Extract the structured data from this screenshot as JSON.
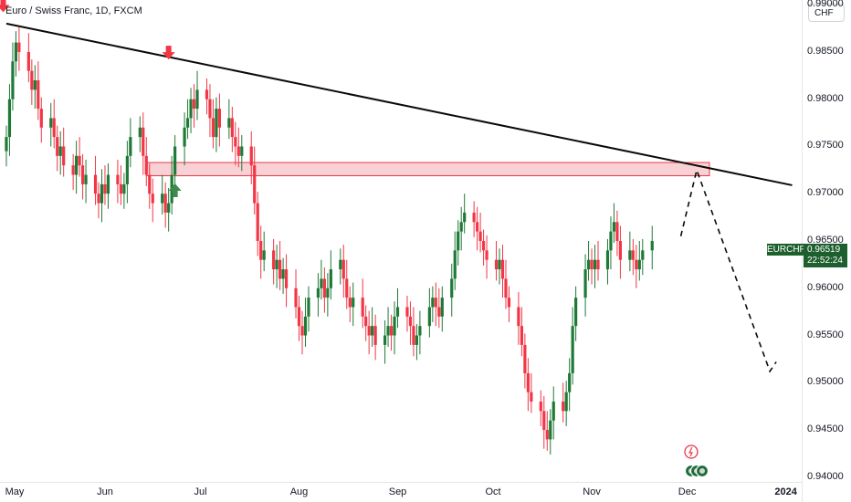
{
  "header": {
    "title": "Euro / Swiss Franc, 1D, FXCM"
  },
  "currency_button": "CHF",
  "price_label": {
    "symbol": "EURCHF",
    "price": "0.96519",
    "countdown": "22:52:24"
  },
  "colors": {
    "up": "#1f7a37",
    "down": "#f23645",
    "trend": "#0a0a0a",
    "zone_fill": "#f8c9cd",
    "zone_stroke": "#e5384a",
    "arrow_down": "#f23645",
    "arrow_up": "#3d8a4a"
  },
  "icons": [
    "flash-icon",
    "events-icon"
  ],
  "chart_data": {
    "type": "candlestick",
    "title": "Euro / Swiss Franc, 1D, FXCM",
    "ylim": [
      0.9395,
      0.9905
    ],
    "y_ticks": [
      "0.99000",
      "0.98500",
      "0.98000",
      "0.97500",
      "0.97000",
      "0.96500",
      "0.96000",
      "0.95500",
      "0.95000",
      "0.94500",
      "0.94000"
    ],
    "y_tick_values": [
      0.99,
      0.985,
      0.98,
      0.975,
      0.97,
      0.965,
      0.96,
      0.955,
      0.95,
      0.945,
      0.94
    ],
    "x_ticks": [
      {
        "label": "May",
        "date": "2023-05-01"
      },
      {
        "label": "Jun",
        "date": "2023-06-01"
      },
      {
        "label": "Jul",
        "date": "2023-07-01"
      },
      {
        "label": "Aug",
        "date": "2023-08-01"
      },
      {
        "label": "Sep",
        "date": "2023-09-01"
      },
      {
        "label": "Oct",
        "date": "2023-10-01"
      },
      {
        "label": "Nov",
        "date": "2023-11-01"
      },
      {
        "label": "Dec",
        "date": "2023-12-01"
      },
      {
        "label": "2024",
        "date": "2024-01-01",
        "bold": true
      }
    ],
    "x_range": [
      "2023-04-29",
      "2024-01-06"
    ],
    "closes": [
      0.976,
      0.98,
      0.984,
      0.986,
      0.985,
      0.983,
      0.981,
      0.982,
      0.979,
      0.977,
      0.978,
      0.976,
      0.974,
      0.975,
      0.973,
      0.972,
      0.974,
      0.973,
      0.971,
      0.972,
      0.97,
      0.969,
      0.971,
      0.97,
      0.972,
      0.971,
      0.97,
      0.971,
      0.974,
      0.976,
      0.977,
      0.974,
      0.972,
      0.97,
      0.969,
      0.97,
      0.968,
      0.969,
      0.972,
      0.975,
      0.977,
      0.978,
      0.98,
      0.979,
      0.981,
      0.98,
      0.978,
      0.976,
      0.979,
      0.977,
      0.978,
      0.976,
      0.975,
      0.974,
      0.975,
      0.973,
      0.969,
      0.965,
      0.963,
      0.964,
      0.962,
      0.963,
      0.961,
      0.962,
      0.96,
      0.958,
      0.956,
      0.955,
      0.957,
      0.959,
      0.96,
      0.961,
      0.959,
      0.96,
      0.962,
      0.963,
      0.961,
      0.959,
      0.958,
      0.959,
      0.957,
      0.956,
      0.955,
      0.956,
      0.954,
      0.955,
      0.956,
      0.955,
      0.957,
      0.958,
      0.957,
      0.956,
      0.954,
      0.955,
      0.956,
      0.958,
      0.959,
      0.958,
      0.957,
      0.959,
      0.961,
      0.964,
      0.966,
      0.967,
      0.968,
      0.967,
      0.966,
      0.965,
      0.964,
      0.963,
      0.962,
      0.963,
      0.961,
      0.959,
      0.958,
      0.956,
      0.954,
      0.951,
      0.949,
      0.948,
      0.947,
      0.945,
      0.944,
      0.946,
      0.948,
      0.947,
      0.949,
      0.951,
      0.956,
      0.959,
      0.962,
      0.963,
      0.962,
      0.963,
      0.962,
      0.964,
      0.966,
      0.967,
      0.965,
      0.963,
      0.964,
      0.963,
      0.962,
      0.963,
      0.964,
      0.965
    ],
    "series": [
      {
        "name": "",
        "kind": "trendline",
        "points": [
          {
            "x": "2023-05-01",
            "y": 0.988
          },
          {
            "x": "2024-01-03",
            "y": 0.9709
          }
        ]
      },
      {
        "name": "",
        "kind": "zone",
        "x0": "2023-06-14",
        "x1": "2023-12-08",
        "y0": 0.9719,
        "y1": 0.9733
      },
      {
        "name": "",
        "kind": "projection",
        "points": [
          {
            "x": "2023-11-29",
            "y": 0.9655
          },
          {
            "x": "2023-12-04",
            "y": 0.9725
          },
          {
            "x": "2023-12-27",
            "y": 0.9512
          },
          {
            "x": "2023-12-29",
            "y": 0.9522
          }
        ]
      }
    ],
    "annotations": [
      {
        "kind": "arrow-down",
        "x": "2023-04-30",
        "y": 0.9895
      },
      {
        "kind": "arrow-down",
        "x": "2023-06-21",
        "y": 0.9845
      },
      {
        "kind": "arrow-up",
        "x": "2023-06-23",
        "y": 0.9708
      }
    ],
    "grid": false
  }
}
